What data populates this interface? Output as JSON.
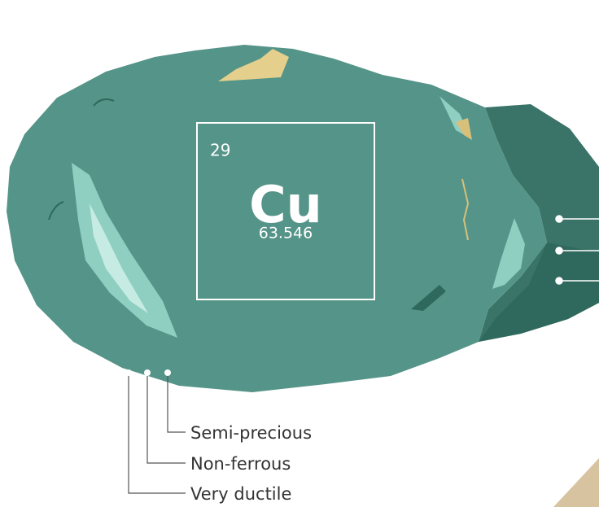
{
  "element": {
    "atomic_number": 29,
    "symbol": "Cu",
    "atomic_mass": 63.546
  },
  "properties": [
    "Semi-precious",
    "Non-ferrous",
    "Very ductile"
  ]
}
